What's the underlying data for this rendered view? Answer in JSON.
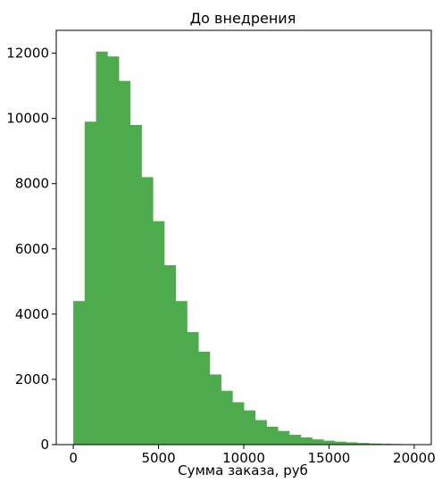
{
  "chart_data": {
    "type": "histogram",
    "title": "До внедрения",
    "xlabel": "Сумма заказа, руб",
    "ylabel": "",
    "bar_color": "#4daa4d",
    "xlim": [
      -1000,
      21000
    ],
    "ylim": [
      0,
      12700
    ],
    "grid": false,
    "legend": false,
    "bin_width": 666.67,
    "x_ticks": [
      0,
      5000,
      10000,
      15000,
      20000
    ],
    "x_tick_labels": [
      "0",
      "5000",
      "10000",
      "15000",
      "20000"
    ],
    "y_ticks": [
      0,
      2000,
      4000,
      6000,
      8000,
      10000,
      12000
    ],
    "y_tick_labels": [
      "0",
      "2000",
      "4000",
      "6000",
      "8000",
      "10000",
      "12000"
    ],
    "bins": [
      {
        "x0": 0,
        "x1": 666.67,
        "count": 4400
      },
      {
        "x0": 666.67,
        "x1": 1333.33,
        "count": 9900
      },
      {
        "x0": 1333.33,
        "x1": 2000,
        "count": 12050
      },
      {
        "x0": 2000,
        "x1": 2666.67,
        "count": 11900
      },
      {
        "x0": 2666.67,
        "x1": 3333.33,
        "count": 11150
      },
      {
        "x0": 3333.33,
        "x1": 4000,
        "count": 9800
      },
      {
        "x0": 4000,
        "x1": 4666.67,
        "count": 8200
      },
      {
        "x0": 4666.67,
        "x1": 5333.33,
        "count": 6850
      },
      {
        "x0": 5333.33,
        "x1": 6000,
        "count": 5500
      },
      {
        "x0": 6000,
        "x1": 6666.67,
        "count": 4400
      },
      {
        "x0": 6666.67,
        "x1": 7333.33,
        "count": 3450
      },
      {
        "x0": 7333.33,
        "x1": 8000,
        "count": 2850
      },
      {
        "x0": 8000,
        "x1": 8666.67,
        "count": 2150
      },
      {
        "x0": 8666.67,
        "x1": 9333.33,
        "count": 1650
      },
      {
        "x0": 9333.33,
        "x1": 10000,
        "count": 1300
      },
      {
        "x0": 10000,
        "x1": 10666.67,
        "count": 1050
      },
      {
        "x0": 10666.67,
        "x1": 11333.33,
        "count": 750
      },
      {
        "x0": 11333.33,
        "x1": 12000,
        "count": 550
      },
      {
        "x0": 12000,
        "x1": 12666.67,
        "count": 420
      },
      {
        "x0": 12666.67,
        "x1": 13333.33,
        "count": 300
      },
      {
        "x0": 13333.33,
        "x1": 14000,
        "count": 220
      },
      {
        "x0": 14000,
        "x1": 14666.67,
        "count": 160
      },
      {
        "x0": 14666.67,
        "x1": 15333.33,
        "count": 120
      },
      {
        "x0": 15333.33,
        "x1": 16000,
        "count": 90
      },
      {
        "x0": 16000,
        "x1": 16666.67,
        "count": 70
      },
      {
        "x0": 16666.67,
        "x1": 17333.33,
        "count": 50
      },
      {
        "x0": 17333.33,
        "x1": 18000,
        "count": 35
      },
      {
        "x0": 18000,
        "x1": 18666.67,
        "count": 25
      },
      {
        "x0": 18666.67,
        "x1": 19333.33,
        "count": 18
      },
      {
        "x0": 19333.33,
        "x1": 20000,
        "count": 12
      }
    ]
  }
}
